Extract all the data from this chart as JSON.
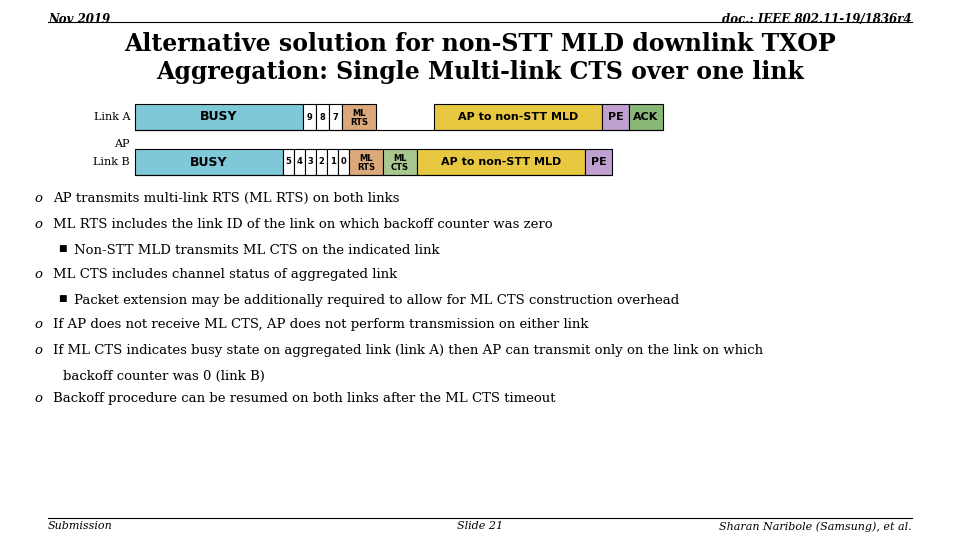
{
  "title_line1": "Alternative solution for non-STT MLD downlink TXOP",
  "title_line2": "Aggregation: Single Multi-link CTS over one link",
  "header_left": "Nov 2019",
  "header_right": "doc.: IEEE 802.11-19/1836r4",
  "footer_left": "Submission",
  "footer_center": "Slide 21",
  "footer_right": "Sharan Naribole (Samsung), et al.",
  "bullets": [
    {
      "text": "AP transmits multi-link RTS (ML RTS) on both links",
      "level": 0
    },
    {
      "text": "ML RTS includes the link ID of the link on which backoff counter was zero",
      "level": 0
    },
    {
      "text": "Non-STT MLD transmits ML CTS on the indicated link",
      "level": 1
    },
    {
      "text": "ML CTS includes channel status of aggregated link",
      "level": 0
    },
    {
      "text": "Packet extension may be additionally required to allow for ML CTS construction overhead",
      "level": 1
    },
    {
      "text": "If AP does not receive ML CTS, AP does not perform transmission on either link",
      "level": 0
    },
    {
      "text": "If ML CTS indicates busy state on aggregated link (link A) then AP can transmit only on the link on which",
      "level": 0
    },
    {
      "text": "backoff counter was 0 (link B)",
      "level": 0,
      "continuation": true
    },
    {
      "text": "Backoff procedure can be resumed on both links after the ML CTS timeout",
      "level": 0
    }
  ],
  "bg_color": "#ffffff",
  "busy_color": "#7ec8d8",
  "ml_rts_color": "#dba87a",
  "ml_cts_color": "#a8c890",
  "ap_to_nst_color": "#e8c840",
  "pe_color": "#c0a0d0",
  "ack_color": "#88b878",
  "countdown_color": "#ffffff"
}
